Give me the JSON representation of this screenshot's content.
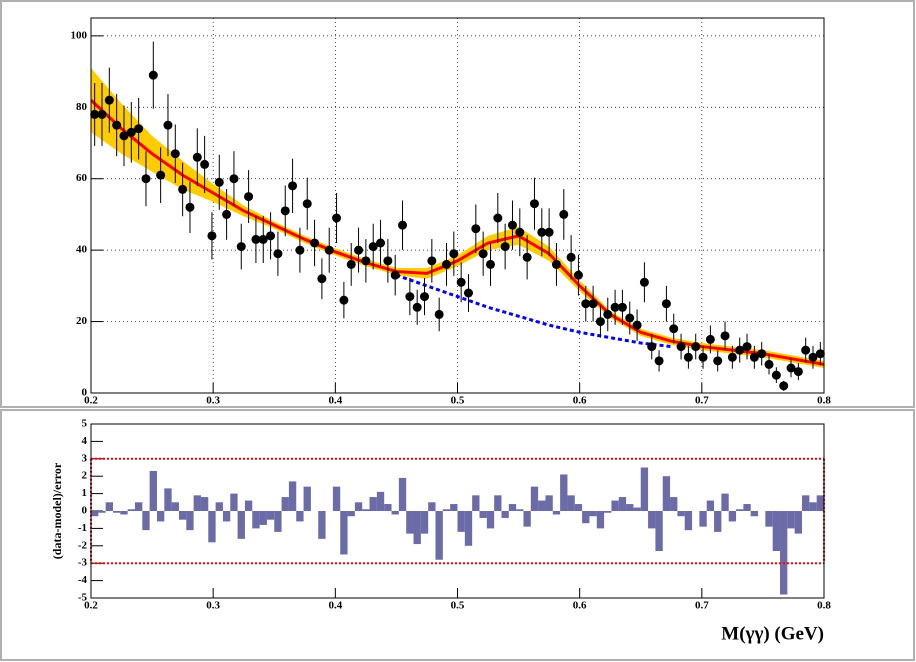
{
  "chart_data": [
    {
      "type": "scatter",
      "x": [
        0.203,
        0.209,
        0.215,
        0.221,
        0.227,
        0.233,
        0.239,
        0.245,
        0.251,
        0.257,
        0.263,
        0.269,
        0.275,
        0.281,
        0.287,
        0.293,
        0.299,
        0.305,
        0.311,
        0.317,
        0.323,
        0.329,
        0.335,
        0.341,
        0.347,
        0.353,
        0.359,
        0.365,
        0.371,
        0.377,
        0.383,
        0.389,
        0.395,
        0.401,
        0.407,
        0.413,
        0.419,
        0.425,
        0.431,
        0.437,
        0.443,
        0.449,
        0.455,
        0.461,
        0.467,
        0.473,
        0.479,
        0.485,
        0.491,
        0.497,
        0.503,
        0.509,
        0.515,
        0.521,
        0.527,
        0.533,
        0.539,
        0.545,
        0.551,
        0.557,
        0.563,
        0.569,
        0.575,
        0.581,
        0.587,
        0.593,
        0.599,
        0.605,
        0.611,
        0.617,
        0.623,
        0.629,
        0.635,
        0.641,
        0.647,
        0.653,
        0.659,
        0.665,
        0.671,
        0.677,
        0.683,
        0.689,
        0.695,
        0.701,
        0.707,
        0.713,
        0.719,
        0.725,
        0.731,
        0.737,
        0.743,
        0.749,
        0.755,
        0.761,
        0.767,
        0.773,
        0.779,
        0.785,
        0.791,
        0.797
      ],
      "values": [
        78,
        78,
        82,
        75,
        72,
        73,
        74,
        60,
        89,
        61,
        75,
        67,
        57,
        52,
        66,
        64,
        44,
        59,
        50,
        60,
        41,
        55,
        43,
        43,
        44,
        39,
        51,
        58,
        40,
        53,
        42,
        32,
        40,
        49,
        26,
        36,
        40,
        37,
        41,
        42,
        37,
        33,
        47,
        27,
        24,
        27,
        37,
        22,
        36,
        39,
        31,
        28,
        46,
        39,
        36,
        49,
        41,
        47,
        45,
        38,
        53,
        45,
        45,
        36,
        50,
        38,
        33,
        25,
        25,
        20,
        22,
        24,
        24,
        21,
        19,
        31,
        13,
        9,
        25,
        18,
        13,
        10,
        13,
        10,
        15,
        9,
        16,
        10,
        12,
        13,
        10,
        11,
        8,
        5,
        2,
        7,
        6,
        12,
        10,
        11
      ],
      "errors": [
        8.8,
        8.8,
        9.1,
        8.7,
        8.5,
        8.5,
        8.6,
        7.7,
        9.4,
        7.8,
        8.7,
        8.2,
        7.5,
        7.2,
        8.1,
        8,
        6.6,
        7.7,
        7.1,
        7.7,
        6.4,
        7.4,
        6.6,
        6.6,
        6.6,
        6.2,
        7.1,
        7.6,
        6.3,
        7.3,
        6.5,
        5.7,
        6.3,
        7,
        5.1,
        6,
        6.3,
        6.1,
        6.4,
        6.5,
        6.1,
        5.7,
        6.9,
        5.2,
        4.9,
        5.2,
        6.1,
        4.7,
        6,
        6.2,
        5.6,
        5.3,
        6.8,
        6.2,
        6,
        7,
        6.4,
        6.9,
        6.7,
        6.2,
        7.3,
        6.7,
        6.7,
        6,
        7.1,
        6.2,
        5.7,
        5,
        5,
        4.5,
        4.7,
        4.9,
        4.9,
        4.6,
        4.4,
        5.6,
        3.6,
        3,
        5,
        4.2,
        3.6,
        3.2,
        3.6,
        3.2,
        3.9,
        3,
        4,
        3.2,
        3.5,
        3.6,
        3.2,
        3.3,
        2.8,
        2.2,
        1.4,
        2.6,
        2.4,
        3.5,
        3.2,
        3.3
      ],
      "color": "#000000",
      "curves": [
        {
          "x": [
            0.2,
            0.225,
            0.25,
            0.275,
            0.3,
            0.325,
            0.35,
            0.375,
            0.4,
            0.425,
            0.45,
            0.475,
            0.5,
            0.525,
            0.55,
            0.575,
            0.6,
            0.625,
            0.65,
            0.675,
            0.7,
            0.725,
            0.75,
            0.775,
            0.8
          ],
          "values": [
            82,
            74,
            67,
            61,
            56,
            51,
            47,
            43,
            39.5,
            36.5,
            34,
            33.5,
            37,
            42,
            44,
            39,
            30,
            22,
            17,
            14.5,
            13,
            12,
            11,
            9.5,
            8
          ],
          "band_errors": [
            9,
            7,
            5,
            4,
            2.5,
            1.5,
            1,
            1,
            1,
            1,
            1,
            1.5,
            1.5,
            2,
            2.5,
            2,
            1.5,
            1,
            1,
            1,
            1,
            1,
            1,
            1,
            1
          ],
          "color": "#ff0000",
          "band_color": "#ffcc00"
        },
        {
          "x": [
            0.45,
            0.475,
            0.5,
            0.525,
            0.55,
            0.575,
            0.6,
            0.625,
            0.65,
            0.675
          ],
          "values": [
            33,
            30,
            27,
            24,
            21.5,
            19,
            17,
            15.5,
            14,
            13
          ],
          "color": "#0000ff",
          "dashed": true
        }
      ],
      "xlim": [
        0.2,
        0.8
      ],
      "xticks": [
        0.2,
        0.3,
        0.4,
        0.5,
        0.6,
        0.7,
        0.8
      ],
      "ylim": [
        0,
        105
      ],
      "yticks": [
        0,
        20,
        40,
        60,
        80,
        100
      ],
      "grid": true
    },
    {
      "type": "bar",
      "x_label": "M(γγ) (GeV)",
      "y_label": "(data-model)/error",
      "x": [
        0.203,
        0.209,
        0.215,
        0.221,
        0.227,
        0.233,
        0.239,
        0.245,
        0.251,
        0.257,
        0.263,
        0.269,
        0.275,
        0.281,
        0.287,
        0.293,
        0.299,
        0.305,
        0.311,
        0.317,
        0.323,
        0.329,
        0.335,
        0.341,
        0.347,
        0.353,
        0.359,
        0.365,
        0.371,
        0.377,
        0.383,
        0.389,
        0.395,
        0.401,
        0.407,
        0.413,
        0.419,
        0.425,
        0.431,
        0.437,
        0.443,
        0.449,
        0.455,
        0.461,
        0.467,
        0.473,
        0.479,
        0.485,
        0.491,
        0.497,
        0.503,
        0.509,
        0.515,
        0.521,
        0.527,
        0.533,
        0.539,
        0.545,
        0.551,
        0.557,
        0.563,
        0.569,
        0.575,
        0.581,
        0.587,
        0.593,
        0.599,
        0.605,
        0.611,
        0.617,
        0.623,
        0.629,
        0.635,
        0.641,
        0.647,
        0.653,
        0.659,
        0.665,
        0.671,
        0.677,
        0.683,
        0.689,
        0.695,
        0.701,
        0.707,
        0.713,
        0.719,
        0.725,
        0.731,
        0.737,
        0.743,
        0.749,
        0.755,
        0.761,
        0.767,
        0.773,
        0.779,
        0.785,
        0.791,
        0.797
      ],
      "values": [
        -0.3,
        -0.1,
        0.5,
        -0.1,
        -0.2,
        0.1,
        0.5,
        -1.1,
        2.3,
        -0.6,
        1.3,
        0.5,
        -0.5,
        -1.1,
        0.9,
        0.8,
        -1.8,
        0.5,
        -0.6,
        1.0,
        -1.6,
        0.6,
        -1.0,
        -0.8,
        -0.5,
        -1.2,
        0.8,
        1.7,
        -0.6,
        1.4,
        0,
        -1.6,
        0,
        1.4,
        -2.5,
        -0.3,
        0.5,
        0.1,
        0.8,
        1.1,
        0.4,
        -0.2,
        1.9,
        -1.3,
        -1.9,
        -1.3,
        0.5,
        -2.8,
        0.1,
        0.4,
        -1.2,
        -2.0,
        0.9,
        -0.4,
        -1.0,
        0.9,
        -0.4,
        0.4,
        0.1,
        -0.9,
        1.4,
        0.6,
        0.9,
        -0.2,
        2.1,
        0.9,
        0.4,
        -0.7,
        -0.3,
        -1.0,
        -0.1,
        0.6,
        0.8,
        0.4,
        0.2,
        2.5,
        -1.0,
        -2.3,
        2.0,
        0.8,
        -0.3,
        -1.1,
        0,
        -0.9,
        0.6,
        -1.2,
        1.0,
        -0.6,
        0.1,
        0.4,
        -0.3,
        0,
        -0.9,
        -2.3,
        -4.8,
        -1.0,
        -1.3,
        0.9,
        0.5,
        0.9
      ],
      "color": "#6b6ba8",
      "reference_lines": [
        -3,
        3
      ],
      "reference_color": "#ff0000",
      "xlim": [
        0.2,
        0.8
      ],
      "xticks": [
        0.2,
        0.3,
        0.4,
        0.5,
        0.6,
        0.7,
        0.8
      ],
      "ylim": [
        -5,
        5
      ],
      "yticks": [
        -5,
        -4,
        -3,
        -2,
        -1,
        0,
        1,
        2,
        3,
        4,
        5
      ]
    }
  ]
}
